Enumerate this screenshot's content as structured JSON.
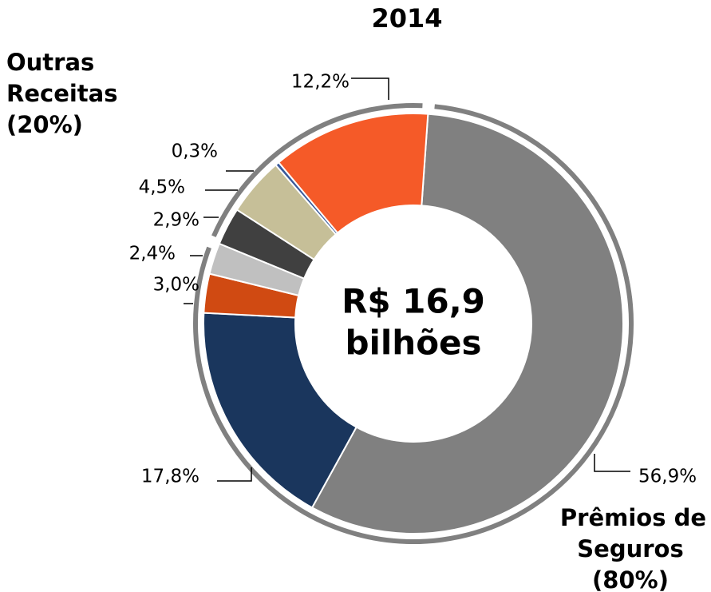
{
  "chart_data": {
    "type": "donut",
    "title": "2014",
    "categories": [
      null,
      null,
      null,
      null,
      null,
      null,
      null,
      null
    ],
    "values": [
      56.9,
      17.8,
      3.0,
      2.4,
      2.9,
      4.5,
      0.3,
      12.2
    ],
    "value_labels": [
      "56,9%",
      "17,8%",
      "3,0%",
      "2,4%",
      "2,9%",
      "4,5%",
      "0,3%",
      "12,2%"
    ],
    "colors": [
      "#808080",
      "#1a365d",
      "#d04a12",
      "#c0c0c0",
      "#404040",
      "#c6bf98",
      "#3a5a9a",
      "#f55a28"
    ],
    "center_label_lines": [
      "R$ 16,9",
      "bilhões"
    ],
    "groups": [
      {
        "label_lines": [
          "Prêmios de",
          "Seguros",
          "(80%)"
        ],
        "value": 80
      },
      {
        "label_lines": [
          "Outras",
          "Receitas",
          "(20%)"
        ],
        "value": 20
      }
    ],
    "group_color": "#808080"
  }
}
